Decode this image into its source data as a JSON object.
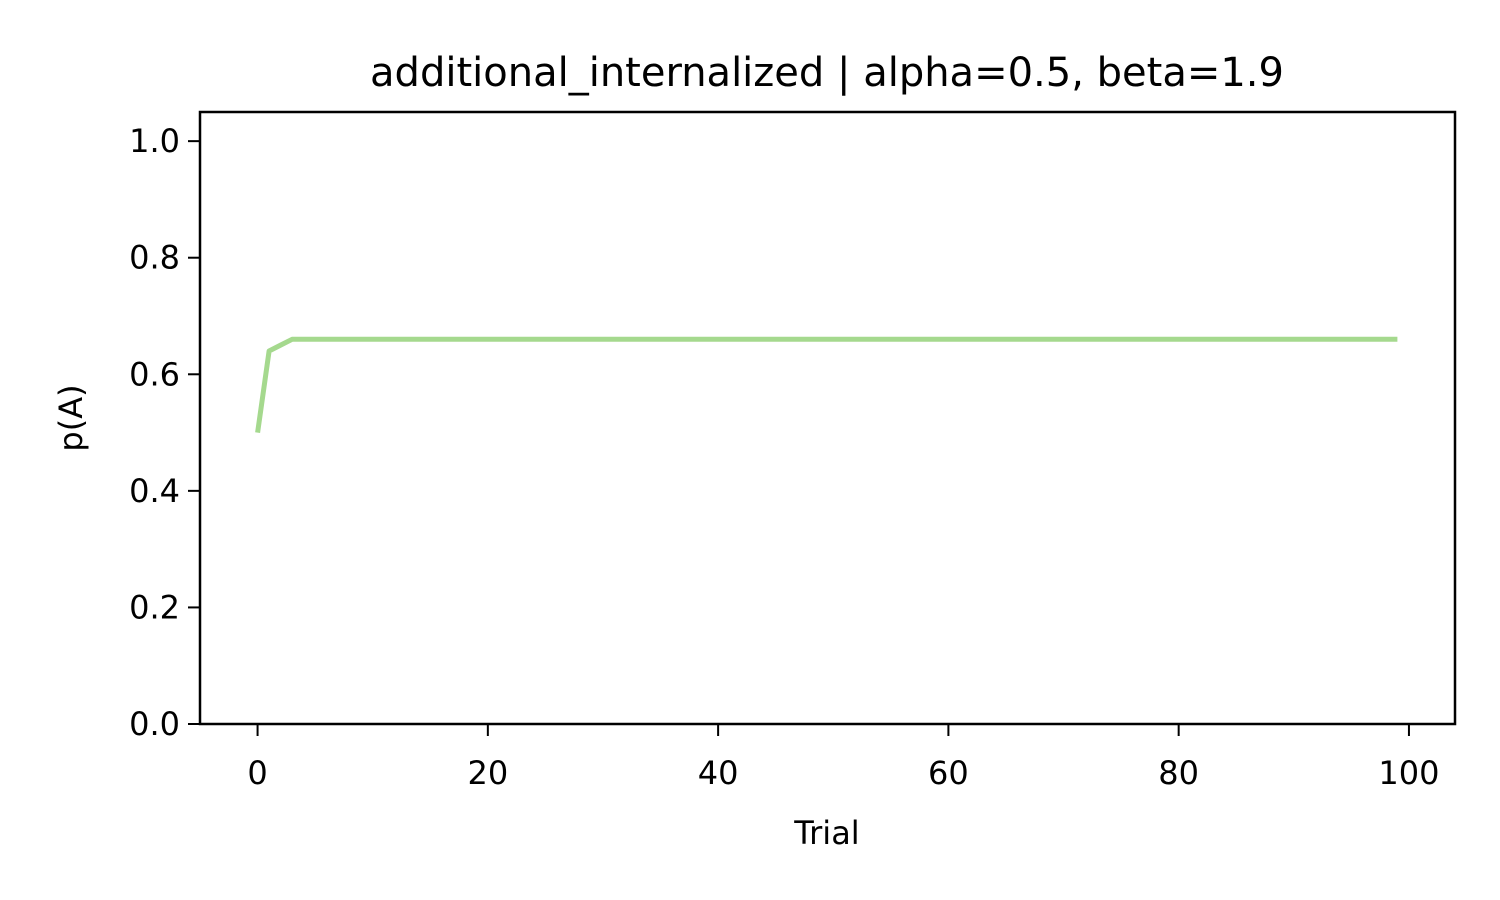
{
  "chart_data": {
    "type": "line",
    "title": "additional_internalized | alpha=0.5, beta=1.9",
    "xlabel": "Trial",
    "ylabel": "p(A)",
    "xlim": [
      -5,
      104
    ],
    "ylim": [
      0.0,
      1.05
    ],
    "xticks": [
      0,
      20,
      40,
      60,
      80,
      100
    ],
    "xtick_labels": [
      "0",
      "20",
      "40",
      "60",
      "80",
      "100"
    ],
    "yticks": [
      0.0,
      0.2,
      0.4,
      0.6,
      0.8,
      1.0
    ],
    "ytick_labels": [
      "0.0",
      "0.2",
      "0.4",
      "0.6",
      "0.8",
      "1.0"
    ],
    "grid": false,
    "series": [
      {
        "color": "#a5d98e",
        "x": [
          0,
          1,
          2,
          3,
          4,
          5,
          6,
          7,
          8,
          9,
          10,
          11,
          12,
          13,
          14,
          15,
          16,
          17,
          18,
          19,
          20,
          21,
          22,
          23,
          24,
          25,
          26,
          27,
          28,
          29,
          30,
          31,
          32,
          33,
          34,
          35,
          36,
          37,
          38,
          39,
          40,
          41,
          42,
          43,
          44,
          45,
          46,
          47,
          48,
          49,
          50,
          51,
          52,
          53,
          54,
          55,
          56,
          57,
          58,
          59,
          60,
          61,
          62,
          63,
          64,
          65,
          66,
          67,
          68,
          69,
          70,
          71,
          72,
          73,
          74,
          75,
          76,
          77,
          78,
          79,
          80,
          81,
          82,
          83,
          84,
          85,
          86,
          87,
          88,
          89,
          90,
          91,
          92,
          93,
          94,
          95,
          96,
          97,
          98,
          99
        ],
        "y": [
          0.5,
          0.64,
          0.65,
          0.66,
          0.66,
          0.66,
          0.66,
          0.66,
          0.66,
          0.66,
          0.66,
          0.66,
          0.66,
          0.66,
          0.66,
          0.66,
          0.66,
          0.66,
          0.66,
          0.66,
          0.66,
          0.66,
          0.66,
          0.66,
          0.66,
          0.66,
          0.66,
          0.66,
          0.66,
          0.66,
          0.66,
          0.66,
          0.66,
          0.66,
          0.66,
          0.66,
          0.66,
          0.66,
          0.66,
          0.66,
          0.66,
          0.66,
          0.66,
          0.66,
          0.66,
          0.66,
          0.66,
          0.66,
          0.66,
          0.66,
          0.66,
          0.66,
          0.66,
          0.66,
          0.66,
          0.66,
          0.66,
          0.66,
          0.66,
          0.66,
          0.66,
          0.66,
          0.66,
          0.66,
          0.66,
          0.66,
          0.66,
          0.66,
          0.66,
          0.66,
          0.66,
          0.66,
          0.66,
          0.66,
          0.66,
          0.66,
          0.66,
          0.66,
          0.66,
          0.66,
          0.66,
          0.66,
          0.66,
          0.66,
          0.66,
          0.66,
          0.66,
          0.66,
          0.66,
          0.66,
          0.66,
          0.66,
          0.66,
          0.66,
          0.66,
          0.66,
          0.66,
          0.66,
          0.66,
          0.66
        ]
      }
    ]
  }
}
